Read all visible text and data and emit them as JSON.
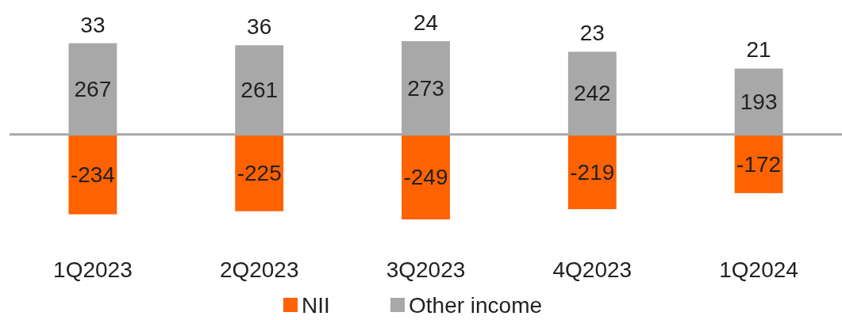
{
  "chart_data": {
    "type": "bar",
    "stacked": true,
    "categories": [
      "1Q2023",
      "2Q2023",
      "3Q2023",
      "4Q2023",
      "1Q2024"
    ],
    "series": [
      {
        "name": "NII",
        "color": "#ff6200",
        "values": [
          -234,
          -225,
          -249,
          -219,
          -172
        ]
      },
      {
        "name": "Other income",
        "color": "#a8a8a8",
        "values": [
          267,
          261,
          273,
          242,
          193
        ]
      }
    ],
    "totals": [
      "33",
      "36",
      "24",
      "23",
      "21"
    ],
    "data_labels": true,
    "legend": "bottom"
  }
}
